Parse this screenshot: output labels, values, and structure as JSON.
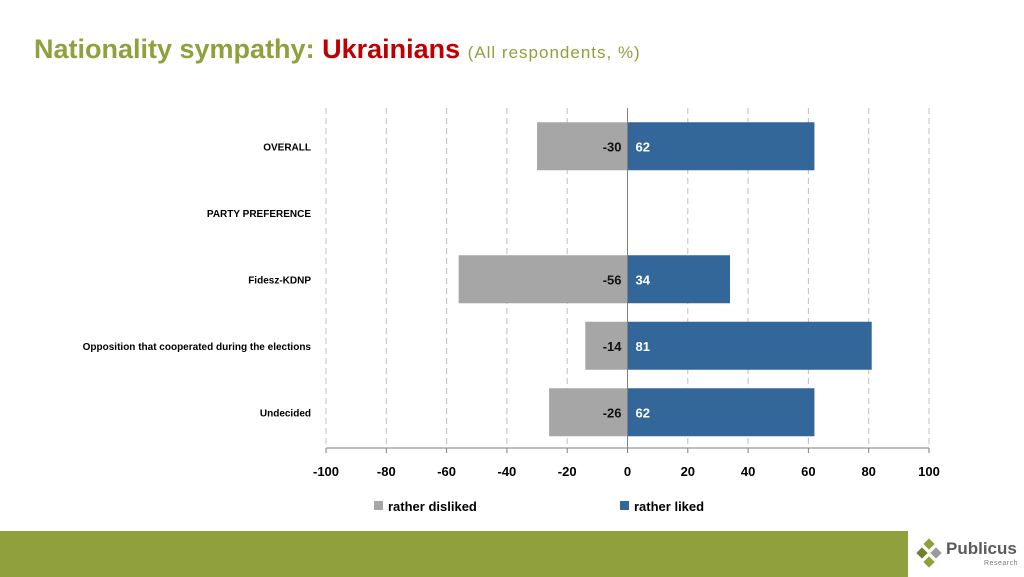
{
  "title": {
    "part1": "Nationality sympathy:",
    "part2": "Ukrainians",
    "part3": "(All respondents, %)"
  },
  "logo": {
    "name": "Publicus",
    "sub": "Research"
  },
  "colors": {
    "disliked": "#a6a6a6",
    "liked": "#336699",
    "accent": "#8fa03d",
    "title_highlight": "#c00000"
  },
  "chart_data": {
    "type": "bar",
    "orientation": "horizontal",
    "stacked": "diverging",
    "categories": [
      "OVERALL",
      "PARTY PREFERENCE",
      "Fidesz-KDNP",
      "Opposition that cooperated during the elections",
      "Undecided"
    ],
    "series": [
      {
        "name": "rather disliked",
        "values": [
          -30,
          null,
          -56,
          -14,
          -26
        ]
      },
      {
        "name": "rather liked",
        "values": [
          62,
          null,
          34,
          81,
          62
        ]
      }
    ],
    "xlim": [
      -100,
      100
    ],
    "x_ticks": [
      -100,
      -80,
      -60,
      -40,
      -20,
      0,
      20,
      40,
      60,
      80,
      100
    ],
    "grid": "vertical dashed",
    "legend": "bottom"
  }
}
